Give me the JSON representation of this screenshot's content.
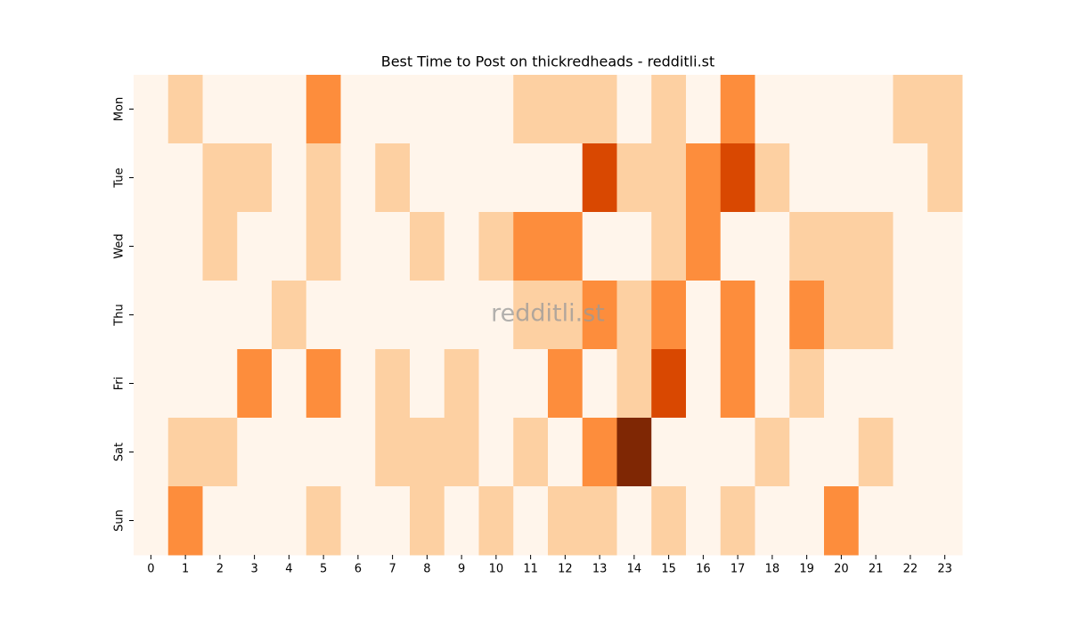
{
  "chart_data": {
    "type": "heatmap",
    "title": "Best Time to Post on thickredheads - redditli.st",
    "watermark": "redditli.st",
    "x": [
      0,
      1,
      2,
      3,
      4,
      5,
      6,
      7,
      8,
      9,
      10,
      11,
      12,
      13,
      14,
      15,
      16,
      17,
      18,
      19,
      20,
      21,
      22,
      23
    ],
    "y": [
      "Mon",
      "Tue",
      "Wed",
      "Thu",
      "Fri",
      "Sat",
      "Sun"
    ],
    "values": [
      [
        0,
        1,
        0,
        0,
        0,
        2,
        0,
        0,
        0,
        0,
        0,
        1,
        1,
        1,
        0,
        1,
        0,
        2,
        0,
        0,
        0,
        0,
        1,
        1
      ],
      [
        0,
        0,
        1,
        1,
        0,
        1,
        0,
        1,
        0,
        0,
        0,
        0,
        0,
        3,
        1,
        1,
        2,
        3,
        1,
        0,
        0,
        0,
        0,
        1
      ],
      [
        0,
        0,
        1,
        0,
        0,
        1,
        0,
        0,
        1,
        0,
        1,
        2,
        2,
        0,
        0,
        1,
        2,
        0,
        0,
        1,
        1,
        1,
        0,
        0
      ],
      [
        0,
        0,
        0,
        0,
        1,
        0,
        0,
        0,
        0,
        0,
        0,
        1,
        1,
        2,
        1,
        2,
        0,
        2,
        0,
        2,
        1,
        1,
        0,
        0
      ],
      [
        0,
        0,
        0,
        2,
        0,
        2,
        0,
        1,
        0,
        1,
        0,
        0,
        2,
        0,
        1,
        3,
        0,
        2,
        0,
        1,
        0,
        0,
        0,
        0
      ],
      [
        0,
        1,
        1,
        0,
        0,
        0,
        0,
        1,
        1,
        1,
        0,
        1,
        0,
        2,
        4,
        0,
        0,
        0,
        1,
        0,
        0,
        1,
        0,
        0
      ],
      [
        0,
        2,
        0,
        0,
        0,
        1,
        0,
        0,
        1,
        0,
        1,
        0,
        1,
        1,
        0,
        1,
        0,
        1,
        0,
        0,
        2,
        0,
        0,
        0
      ]
    ],
    "zlim": [
      0,
      4
    ],
    "colormap": [
      "#fff5eb",
      "#fdd0a2",
      "#fd8d3c",
      "#d94801",
      "#7f2704"
    ]
  }
}
